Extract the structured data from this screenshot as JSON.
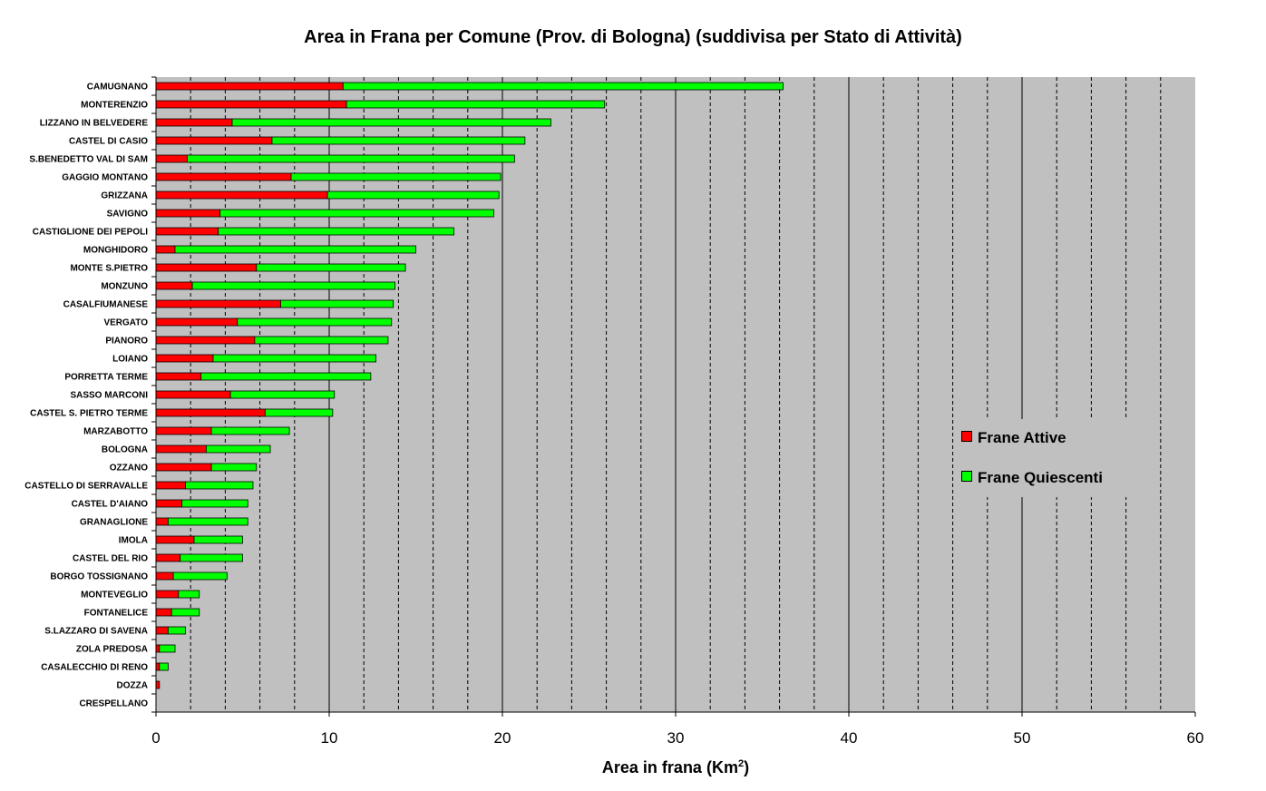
{
  "chart_data": {
    "type": "bar",
    "orientation": "horizontal",
    "stacked": true,
    "title": "Area in Frana per Comune (Prov. di Bologna) (suddivisa per Stato di Attività)",
    "xlabel": "Area in frana (Km",
    "xlabel_superscript": "2",
    "xlabel_close": ")",
    "xlim": [
      0,
      60
    ],
    "xticks": [
      "0",
      "10",
      "20",
      "30",
      "40",
      "50",
      "60"
    ],
    "grid": true,
    "legend_position": "right",
    "categories": [
      "CAMUGNANO",
      "MONTERENZIO",
      "LIZZANO IN BELVEDERE",
      "CASTEL DI CASIO",
      "S.BENEDETTO VAL DI SAM",
      "GAGGIO MONTANO",
      "GRIZZANA",
      "SAVIGNO",
      "CASTIGLIONE DEI PEPOLI",
      "MONGHIDORO",
      "MONTE S.PIETRO",
      "MONZUNO",
      "CASALFIUMANESE",
      "VERGATO",
      "PIANORO",
      "LOIANO",
      "PORRETTA TERME",
      "SASSO MARCONI",
      "CASTEL S. PIETRO TERME",
      "MARZABOTTO",
      "BOLOGNA",
      "OZZANO",
      "CASTELLO DI SERRAVALLE",
      "CASTEL D'AIANO",
      "GRANAGLIONE",
      "IMOLA",
      "CASTEL DEL RIO",
      "BORGO TOSSIGNANO",
      "MONTEVEGLIO",
      "FONTANELICE",
      "S.LAZZARO DI SAVENA",
      "ZOLA PREDOSA",
      "CASALECCHIO DI RENO",
      "DOZZA",
      "CRESPELLANO"
    ],
    "series": [
      {
        "name": "Frane Attive",
        "color": "#ff0000",
        "values": [
          10.8,
          11.0,
          4.4,
          6.7,
          1.8,
          7.8,
          9.9,
          3.7,
          3.6,
          1.1,
          5.8,
          2.1,
          7.2,
          4.7,
          5.7,
          3.3,
          2.6,
          4.3,
          6.3,
          3.2,
          2.9,
          3.2,
          1.7,
          1.5,
          0.7,
          2.2,
          1.4,
          1.0,
          1.3,
          0.9,
          0.7,
          0.2,
          0.2,
          0.2,
          0.0
        ]
      },
      {
        "name": "Frane Quiescenti",
        "color": "#00ff00",
        "values": [
          25.4,
          14.9,
          18.4,
          14.6,
          18.9,
          12.1,
          9.9,
          15.8,
          13.6,
          13.9,
          8.6,
          11.7,
          6.5,
          8.9,
          7.7,
          9.4,
          9.8,
          6.0,
          3.9,
          4.5,
          3.7,
          2.6,
          3.9,
          3.8,
          4.6,
          2.8,
          3.6,
          3.1,
          1.2,
          1.6,
          1.0,
          0.9,
          0.5,
          0.0,
          0.0
        ]
      }
    ]
  }
}
